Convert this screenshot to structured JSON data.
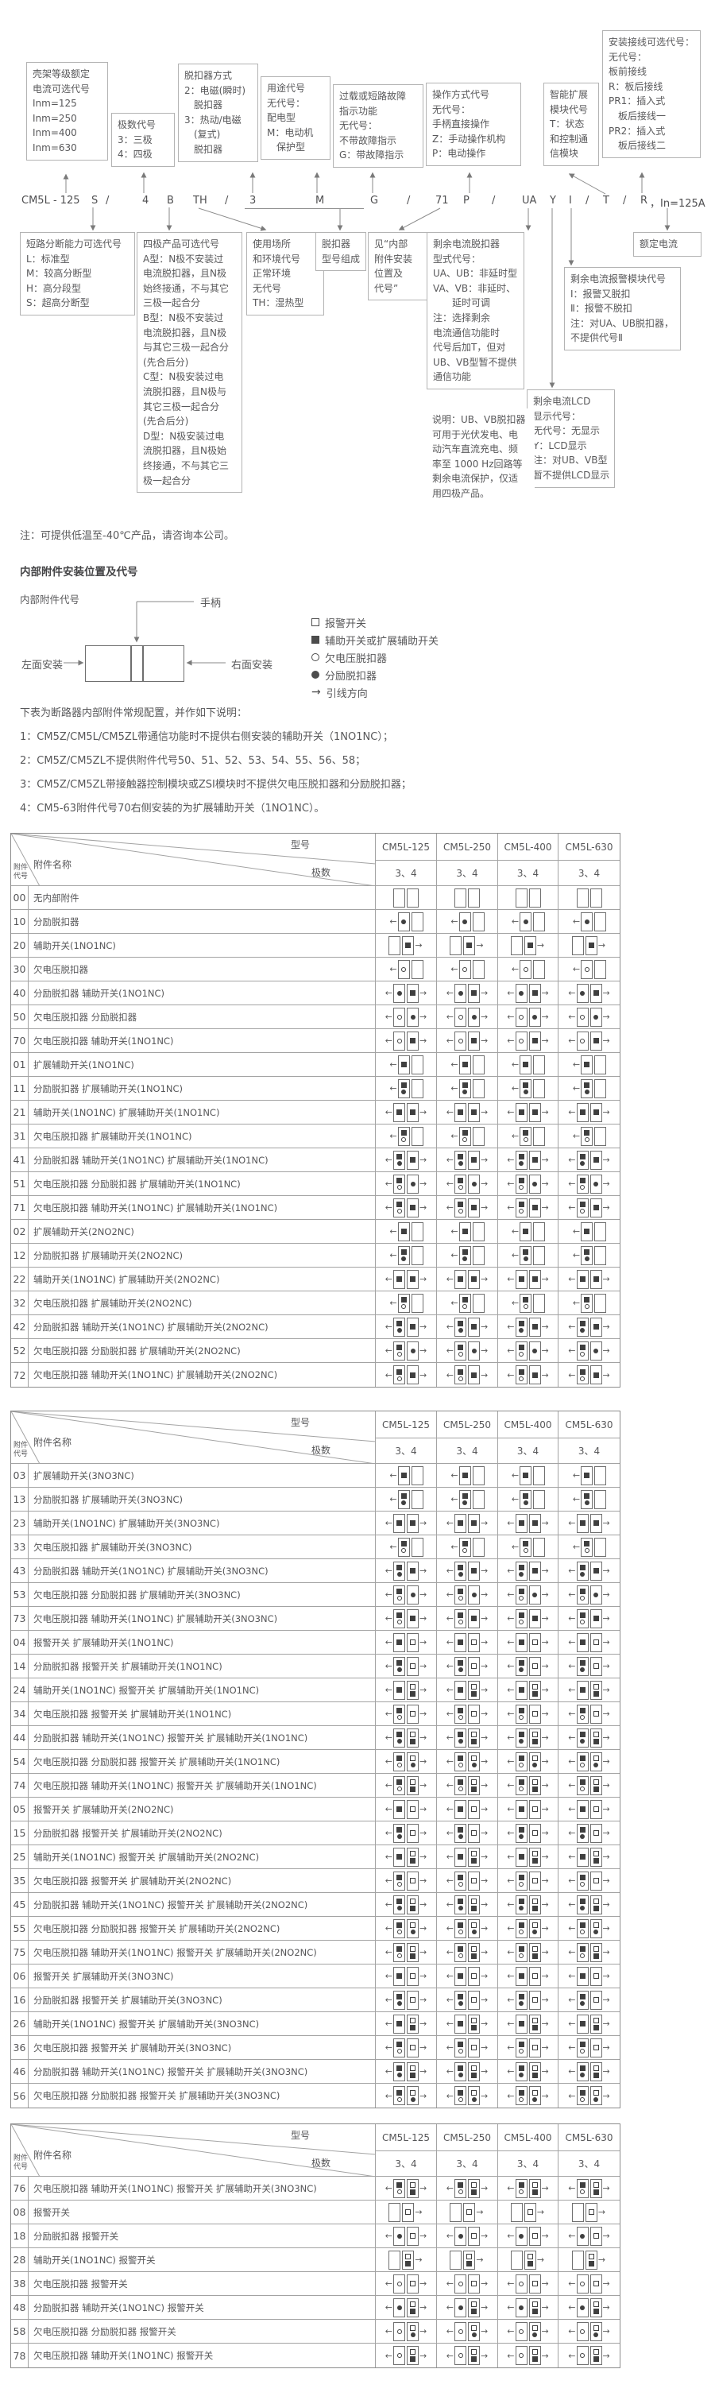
{
  "designation": {
    "code_parts": [
      "CM5L - 125",
      "S",
      "/",
      "4",
      "B",
      "TH",
      "/",
      "3",
      "M",
      "G",
      "/",
      "71",
      "P",
      "/",
      "UA",
      "Y",
      "I",
      "/",
      "T",
      "/",
      "R",
      "，In=125A"
    ],
    "boxes": {
      "frame_current": {
        "lines": [
          "壳架等级额定",
          "电流可选代号",
          "Inm=125",
          "Inm=250",
          "Inm=400",
          "Inm=630"
        ]
      },
      "poles_code": {
        "lines": [
          "极数代号",
          "3：三极",
          "4：四极"
        ]
      },
      "trip_mode": {
        "lines": [
          "脱扣器方式",
          "2：电磁(瞬时)",
          "　脱扣器",
          "3：热动/电磁",
          "　(复式)",
          "　脱扣器"
        ]
      },
      "usage_code": {
        "lines": [
          "用途代号",
          "无代号：",
          "配电型",
          "M：电动机",
          "　保护型"
        ]
      },
      "fault_indication": {
        "lines": [
          "过载或短路故障",
          "指示功能",
          "无代号：",
          "不带故障指示",
          "G：带故障指示"
        ]
      },
      "operation_mode": {
        "lines": [
          "操作方式代号",
          "无代号：",
          "手柄直接操作",
          "Z：手动操作机构",
          "P：电动操作"
        ]
      },
      "smart_module": {
        "lines": [
          "智能扩展",
          "模块代号",
          "T：状态",
          "和控制通",
          "信模块"
        ]
      },
      "wiring_option": {
        "lines": [
          "安装接线可选代号：",
          "无代号：",
          "板前接线",
          "R：板后接线",
          "PR1：插入式",
          "　板后接线一",
          "PR2：插入式",
          "　板后接线二"
        ]
      },
      "breaking_capacity": {
        "lines": [
          "短路分断能力可选代号",
          "L：标准型",
          "M：较高分断型",
          "H：高分段型",
          "S：超高分断型"
        ]
      },
      "four_pole_option": {
        "lines": [
          "四极产品可选代号",
          "A型：N极不安装过",
          "电流脱扣器，且N极",
          "始终接通，不与其它",
          "三极一起合分",
          "B型：N极不安装过",
          "电流脱扣器，且N极",
          "与其它三极一起合分",
          "(先合后分)",
          "C型：N极安装过电",
          "流脱扣器，且N极与",
          "其它三极一起合分",
          "(先合后分)",
          "D型：N极安装过电",
          "流脱扣器，且N极始",
          "终接通，不与其它三",
          "极一起合分"
        ]
      },
      "environment": {
        "lines": [
          "使用场所",
          "和环境代号",
          "正常环境",
          "无代号",
          "TH：湿热型"
        ]
      },
      "trip_model_comp": {
        "lines": [
          "脱扣器",
          "型号组成"
        ]
      },
      "see_internal": {
        "lines": [
          "见“内部",
          "附件安装",
          "位置及",
          "代号”"
        ]
      },
      "residual_type": {
        "lines": [
          "剩余电流脱扣器",
          "型式代号：",
          "UA、UB：非延时型",
          "VA、VB：非延时、",
          "　　延时可调",
          "注：选择剩余",
          "电流通信功能时",
          "代号后加T，但对",
          "UB、VB型暂不提供",
          "通信功能"
        ]
      },
      "rated_current": {
        "lines": [
          "额定电流"
        ]
      },
      "residual_alarm": {
        "lines": [
          "剩余电流报警模块代号",
          "Ⅰ：报警又脱扣",
          "Ⅱ：报警不脱扣",
          "注：对UA、UB脱扣器，",
          "不提供代号Ⅱ"
        ]
      },
      "residual_lcd": {
        "lines": [
          "剩余电流LCD",
          "显示代号：",
          "无代号：无显示",
          "Y：LCD显示",
          "注：对UB、VB型",
          "暂不提供LCD显示"
        ]
      }
    },
    "explain_lines": [
      "说明：UB、VB脱扣器",
      "可用于光伏发电、电",
      "动汽车直流充电、频",
      "率至 1000 Hz回路等",
      "剩余电流保护，仅适",
      "用四极产品。"
    ],
    "low_temp_note": "注：可提供低温至-40℃产品，请咨询本公司。"
  },
  "position_section": {
    "title": "内部附件安装位置及代号",
    "subtitle": "内部附件代号",
    "handle_label": "手柄",
    "left_label": "左面安装",
    "right_label": "右面安装",
    "legend": [
      {
        "sym": "os",
        "label": "报警开关"
      },
      {
        "sym": "fs",
        "label": "辅助开关或扩展辅助开关"
      },
      {
        "sym": "oc",
        "label": "欠电压脱扣器"
      },
      {
        "sym": "fc",
        "label": "分励脱扣器"
      },
      {
        "sym": "arrow",
        "label": "引线方向"
      }
    ],
    "notes": [
      "下表为断路器内部附件常规配置，并作如下说明：",
      "1：CM5Z/CM5L/CM5ZL带通信功能时不提供右侧安装的辅助开关（1NO1NC）；",
      "2：CM5Z/CM5ZL不提供附件代号50、51、52、53、54、55、56、58；",
      "3：CM5Z/CM5ZL带接触器控制模块或ZSI模块时不提供欠电压脱扣器和分励脱扣器；",
      "4：CM5-63附件代号70右侧安装的为扩展辅助开关（1NO1NC）。"
    ]
  },
  "table_header": {
    "model_label": "型号",
    "poles_label": "极数",
    "name_label": "附件名称",
    "code_label_l1": "附件",
    "code_label_l2": "代号",
    "models": [
      "CM5L-125",
      "CM5L-250",
      "CM5L-400",
      "CM5L-630"
    ],
    "poles_value": "3、4"
  },
  "tables": [
    {
      "rows": [
        {
          "c": "00",
          "n": "无内部附件",
          "l": [],
          "r": [],
          "al": 0,
          "ar": 0
        },
        {
          "c": "10",
          "n": "分励脱扣器",
          "l": [
            "fc"
          ],
          "r": [],
          "al": 1,
          "ar": 0
        },
        {
          "c": "20",
          "n": "辅助开关(1NO1NC)",
          "l": [],
          "r": [
            "fs"
          ],
          "al": 0,
          "ar": 1
        },
        {
          "c": "30",
          "n": "欠电压脱扣器",
          "l": [
            "oc"
          ],
          "r": [],
          "al": 1,
          "ar": 0
        },
        {
          "c": "40",
          "n": "分励脱扣器 辅助开关(1NO1NC)",
          "l": [
            "fc"
          ],
          "r": [
            "fs"
          ],
          "al": 1,
          "ar": 1
        },
        {
          "c": "50",
          "n": "欠电压脱扣器 分励脱扣器",
          "l": [
            "oc"
          ],
          "r": [
            "fc"
          ],
          "al": 1,
          "ar": 1
        },
        {
          "c": "70",
          "n": "欠电压脱扣器 辅助开关(1NO1NC)",
          "l": [
            "oc"
          ],
          "r": [
            "fs"
          ],
          "al": 1,
          "ar": 1
        },
        {
          "c": "01",
          "n": "扩展辅助开关(1NO1NC)",
          "l": [
            "fs"
          ],
          "r": [],
          "al": 1,
          "ar": 0
        },
        {
          "c": "11",
          "n": "分励脱扣器 扩展辅助开关(1NO1NC)",
          "l": [
            "fs",
            "fc"
          ],
          "r": [],
          "al": 1,
          "ar": 0
        },
        {
          "c": "21",
          "n": "辅助开关(1NO1NC) 扩展辅助开关(1NO1NC)",
          "l": [
            "fs"
          ],
          "r": [
            "fs"
          ],
          "al": 1,
          "ar": 1
        },
        {
          "c": "31",
          "n": "欠电压脱扣器 扩展辅助开关(1NO1NC)",
          "l": [
            "fs",
            "oc"
          ],
          "r": [],
          "al": 1,
          "ar": 0
        },
        {
          "c": "41",
          "n": "分励脱扣器 辅助开关(1NO1NC) 扩展辅助开关(1NO1NC)",
          "l": [
            "fs",
            "fc"
          ],
          "r": [
            "fs"
          ],
          "al": 1,
          "ar": 1
        },
        {
          "c": "51",
          "n": "欠电压脱扣器 分励脱扣器 扩展辅助开关(1NO1NC)",
          "l": [
            "fs",
            "oc"
          ],
          "r": [
            "fc"
          ],
          "al": 1,
          "ar": 1
        },
        {
          "c": "71",
          "n": "欠电压脱扣器 辅助开关(1NO1NC) 扩展辅助开关(1NO1NC)",
          "l": [
            "fs",
            "oc"
          ],
          "r": [
            "fs"
          ],
          "al": 1,
          "ar": 1
        },
        {
          "c": "02",
          "n": "扩展辅助开关(2NO2NC)",
          "l": [
            "fs"
          ],
          "r": [],
          "al": 1,
          "ar": 0
        },
        {
          "c": "12",
          "n": "分励脱扣器 扩展辅助开关(2NO2NC)",
          "l": [
            "fs",
            "fc"
          ],
          "r": [],
          "al": 1,
          "ar": 0
        },
        {
          "c": "22",
          "n": "辅助开关(1NO1NC) 扩展辅助开关(2NO2NC)",
          "l": [
            "fs"
          ],
          "r": [
            "fs"
          ],
          "al": 1,
          "ar": 1
        },
        {
          "c": "32",
          "n": "欠电压脱扣器 扩展辅助开关(2NO2NC)",
          "l": [
            "fs",
            "oc"
          ],
          "r": [],
          "al": 1,
          "ar": 0
        },
        {
          "c": "42",
          "n": "分励脱扣器 辅助开关(1NO1NC) 扩展辅助开关(2NO2NC)",
          "l": [
            "fs",
            "fc"
          ],
          "r": [
            "fs"
          ],
          "al": 1,
          "ar": 1
        },
        {
          "c": "52",
          "n": "欠电压脱扣器 分励脱扣器 扩展辅助开关(2NO2NC)",
          "l": [
            "fs",
            "oc"
          ],
          "r": [
            "fc"
          ],
          "al": 1,
          "ar": 1
        },
        {
          "c": "72",
          "n": "欠电压脱扣器 辅助开关(1NO1NC) 扩展辅助开关(2NO2NC)",
          "l": [
            "fs",
            "oc"
          ],
          "r": [
            "fs"
          ],
          "al": 1,
          "ar": 1
        }
      ]
    },
    {
      "rows": [
        {
          "c": "03",
          "n": "扩展辅助开关(3NO3NC)",
          "l": [
            "fs"
          ],
          "r": [],
          "al": 1,
          "ar": 0
        },
        {
          "c": "13",
          "n": "分励脱扣器 扩展辅助开关(3NO3NC)",
          "l": [
            "fs",
            "fc"
          ],
          "r": [],
          "al": 1,
          "ar": 0
        },
        {
          "c": "23",
          "n": "辅助开关(1NO1NC) 扩展辅助开关(3NO3NC)",
          "l": [
            "fs"
          ],
          "r": [
            "fs"
          ],
          "al": 1,
          "ar": 1
        },
        {
          "c": "33",
          "n": "欠电压脱扣器 扩展辅助开关(3NO3NC)",
          "l": [
            "fs",
            "oc"
          ],
          "r": [],
          "al": 1,
          "ar": 0
        },
        {
          "c": "43",
          "n": "分励脱扣器 辅助开关(1NO1NC) 扩展辅助开关(3NO3NC)",
          "l": [
            "fs",
            "fc"
          ],
          "r": [
            "fs"
          ],
          "al": 1,
          "ar": 1
        },
        {
          "c": "53",
          "n": "欠电压脱扣器 分励脱扣器 扩展辅助开关(3NO3NC)",
          "l": [
            "fs",
            "oc"
          ],
          "r": [
            "fc"
          ],
          "al": 1,
          "ar": 1
        },
        {
          "c": "73",
          "n": "欠电压脱扣器 辅助开关(1NO1NC) 扩展辅助开关(3NO3NC)",
          "l": [
            "fs",
            "oc"
          ],
          "r": [
            "fs"
          ],
          "al": 1,
          "ar": 1
        },
        {
          "c": "04",
          "n": "报警开关 扩展辅助开关(1NO1NC)",
          "l": [
            "fs"
          ],
          "r": [
            "os"
          ],
          "al": 1,
          "ar": 1
        },
        {
          "c": "14",
          "n": "分励脱扣器 报警开关 扩展辅助开关(1NO1NC)",
          "l": [
            "fs",
            "fc"
          ],
          "r": [
            "os"
          ],
          "al": 1,
          "ar": 1
        },
        {
          "c": "24",
          "n": "辅助开关(1NO1NC) 报警开关 扩展辅助开关(1NO1NC)",
          "l": [
            "fs"
          ],
          "r": [
            "os",
            "fs"
          ],
          "al": 1,
          "ar": 1
        },
        {
          "c": "34",
          "n": "欠电压脱扣器 报警开关 扩展辅助开关(1NO1NC)",
          "l": [
            "fs",
            "oc"
          ],
          "r": [
            "os"
          ],
          "al": 1,
          "ar": 1
        },
        {
          "c": "44",
          "n": "分励脱扣器 辅助开关(1NO1NC) 报警开关 扩展辅助开关(1NO1NC)",
          "l": [
            "fs",
            "fc"
          ],
          "r": [
            "os",
            "fs"
          ],
          "al": 1,
          "ar": 1
        },
        {
          "c": "54",
          "n": "欠电压脱扣器 分励脱扣器 报警开关 扩展辅助开关(1NO1NC)",
          "l": [
            "fs",
            "oc"
          ],
          "r": [
            "os",
            "fc"
          ],
          "al": 1,
          "ar": 1
        },
        {
          "c": "74",
          "n": "欠电压脱扣器 辅助开关(1NO1NC) 报警开关 扩展辅助开关(1NO1NC)",
          "l": [
            "fs",
            "oc"
          ],
          "r": [
            "os",
            "fs"
          ],
          "al": 1,
          "ar": 1
        },
        {
          "c": "05",
          "n": "报警开关 扩展辅助开关(2NO2NC)",
          "l": [
            "fs"
          ],
          "r": [
            "os"
          ],
          "al": 1,
          "ar": 1
        },
        {
          "c": "15",
          "n": "分励脱扣器 报警开关 扩展辅助开关(2NO2NC)",
          "l": [
            "fs",
            "fc"
          ],
          "r": [
            "os"
          ],
          "al": 1,
          "ar": 1
        },
        {
          "c": "25",
          "n": "辅助开关(1NO1NC) 报警开关 扩展辅助开关(2NO2NC)",
          "l": [
            "fs"
          ],
          "r": [
            "os",
            "fs"
          ],
          "al": 1,
          "ar": 1
        },
        {
          "c": "35",
          "n": "欠电压脱扣器 报警开关 扩展辅助开关(2NO2NC)",
          "l": [
            "fs",
            "oc"
          ],
          "r": [
            "os"
          ],
          "al": 1,
          "ar": 1
        },
        {
          "c": "45",
          "n": "分励脱扣器 辅助开关(1NO1NC) 报警开关 扩展辅助开关(2NO2NC)",
          "l": [
            "fs",
            "fc"
          ],
          "r": [
            "os",
            "fs"
          ],
          "al": 1,
          "ar": 1
        },
        {
          "c": "55",
          "n": "欠电压脱扣器 分励脱扣器 报警开关 扩展辅助开关(2NO2NC)",
          "l": [
            "fs",
            "oc"
          ],
          "r": [
            "os",
            "fc"
          ],
          "al": 1,
          "ar": 1
        },
        {
          "c": "75",
          "n": "欠电压脱扣器 辅助开关(1NO1NC) 报警开关 扩展辅助开关(2NO2NC)",
          "l": [
            "fs",
            "oc"
          ],
          "r": [
            "os",
            "fs"
          ],
          "al": 1,
          "ar": 1
        },
        {
          "c": "06",
          "n": "报警开关 扩展辅助开关(3NO3NC)",
          "l": [
            "fs"
          ],
          "r": [
            "os"
          ],
          "al": 1,
          "ar": 1
        },
        {
          "c": "16",
          "n": "分励脱扣器 报警开关 扩展辅助开关(3NO3NC)",
          "l": [
            "fs",
            "fc"
          ],
          "r": [
            "os"
          ],
          "al": 1,
          "ar": 1
        },
        {
          "c": "26",
          "n": "辅助开关(1NO1NC) 报警开关 扩展辅助开关(3NO3NC)",
          "l": [
            "fs"
          ],
          "r": [
            "os",
            "fs"
          ],
          "al": 1,
          "ar": 1
        },
        {
          "c": "36",
          "n": "欠电压脱扣器 报警开关 扩展辅助开关(3NO3NC)",
          "l": [
            "fs",
            "oc"
          ],
          "r": [
            "os"
          ],
          "al": 1,
          "ar": 1
        },
        {
          "c": "46",
          "n": "分励脱扣器 辅助开关(1NO1NC) 报警开关 扩展辅助开关(3NO3NC)",
          "l": [
            "fs",
            "fc"
          ],
          "r": [
            "os",
            "fs"
          ],
          "al": 1,
          "ar": 1
        },
        {
          "c": "56",
          "n": "欠电压脱扣器 分励脱扣器 报警开关 扩展辅助开关(3NO3NC)",
          "l": [
            "fs",
            "oc"
          ],
          "r": [
            "os",
            "fc"
          ],
          "al": 1,
          "ar": 1
        }
      ]
    },
    {
      "rows": [
        {
          "c": "76",
          "n": "欠电压脱扣器 辅助开关(1NO1NC) 报警开关 扩展辅助开关(3NO3NC)",
          "l": [
            "fs",
            "oc"
          ],
          "r": [
            "os",
            "fs"
          ],
          "al": 1,
          "ar": 1
        },
        {
          "c": "08",
          "n": "报警开关",
          "l": [],
          "r": [
            "os"
          ],
          "al": 0,
          "ar": 1
        },
        {
          "c": "18",
          "n": "分励脱扣器 报警开关",
          "l": [
            "fc"
          ],
          "r": [
            "os"
          ],
          "al": 1,
          "ar": 1
        },
        {
          "c": "28",
          "n": "辅助开关(1NO1NC) 报警开关",
          "l": [],
          "r": [
            "os",
            "fs"
          ],
          "al": 0,
          "ar": 1
        },
        {
          "c": "38",
          "n": "欠电压脱扣器 报警开关",
          "l": [
            "oc"
          ],
          "r": [
            "os"
          ],
          "al": 1,
          "ar": 1
        },
        {
          "c": "48",
          "n": "分励脱扣器 辅助开关(1NO1NC) 报警开关",
          "l": [
            "fc"
          ],
          "r": [
            "os",
            "fs"
          ],
          "al": 1,
          "ar": 1
        },
        {
          "c": "58",
          "n": "欠电压脱扣器 分励脱扣器 报警开关",
          "l": [
            "oc"
          ],
          "r": [
            "os",
            "fc"
          ],
          "al": 1,
          "ar": 1
        },
        {
          "c": "78",
          "n": "欠电压脱扣器 辅助开关(1NO1NC) 报警开关",
          "l": [
            "oc"
          ],
          "r": [
            "os",
            "fs"
          ],
          "al": 1,
          "ar": 1
        }
      ]
    }
  ]
}
